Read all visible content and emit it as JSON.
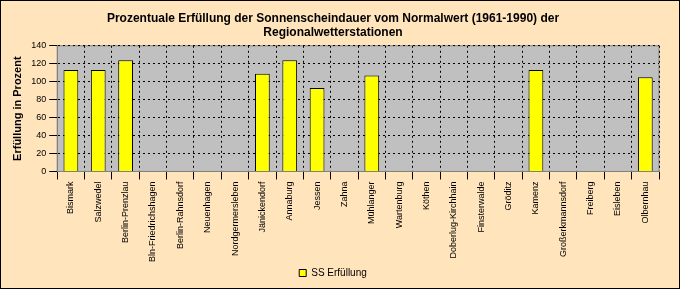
{
  "chart_data": {
    "type": "bar",
    "title": [
      "Prozentuale Erfüllung der Sonnenscheindauer vom Normalwert (1961-1990) der",
      "Regionalwetterstationen"
    ],
    "y_label": "Erfüllung in Prozent",
    "categories": [
      "Bismark",
      "Salzwedel",
      "Berlin-Prenzlau",
      "Bln-Friedrichshagen",
      "Berlin-Rahnsdorf",
      "Neuenhagen",
      "Nordgermersleben",
      "Jänickendorf",
      "Annaburg",
      "Jessen",
      "Zahna",
      "Mühlanger",
      "Wartenburg",
      "Köthen",
      "Doberlug-Kirchhain",
      "Finsterwalde",
      "Gröditz",
      "Kamenz",
      "Großerkmannsdorf",
      "Freiberg",
      "Eisleben",
      "Olbernhau"
    ],
    "series": [
      {
        "name": "SS Erfüllung",
        "color": "#ffff00",
        "values": [
          113,
          113,
          124,
          null,
          null,
          null,
          null,
          109,
          124,
          93,
          null,
          107,
          null,
          null,
          null,
          null,
          null,
          113,
          null,
          null,
          null,
          105
        ]
      }
    ],
    "ylim": [
      0,
      140
    ],
    "yticks": [
      0,
      20,
      40,
      60,
      80,
      100,
      120,
      140
    ],
    "grid": true,
    "legend": "bottom"
  }
}
